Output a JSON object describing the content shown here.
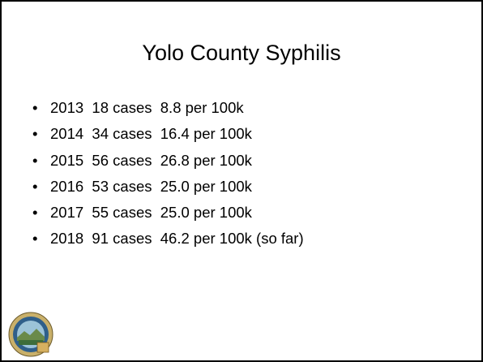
{
  "title": "Yolo County Syphilis",
  "bullets": [
    "2013  18 cases  8.8 per 100k",
    "2014  34 cases  16.4 per 100k",
    "2015  56 cases  26.8 per 100k",
    "2016  53 cases  25.0 per 100k",
    "2017  55 cases  25.0 per 100k",
    "2018  91 cases  46.2 per 100k (so far)"
  ]
}
